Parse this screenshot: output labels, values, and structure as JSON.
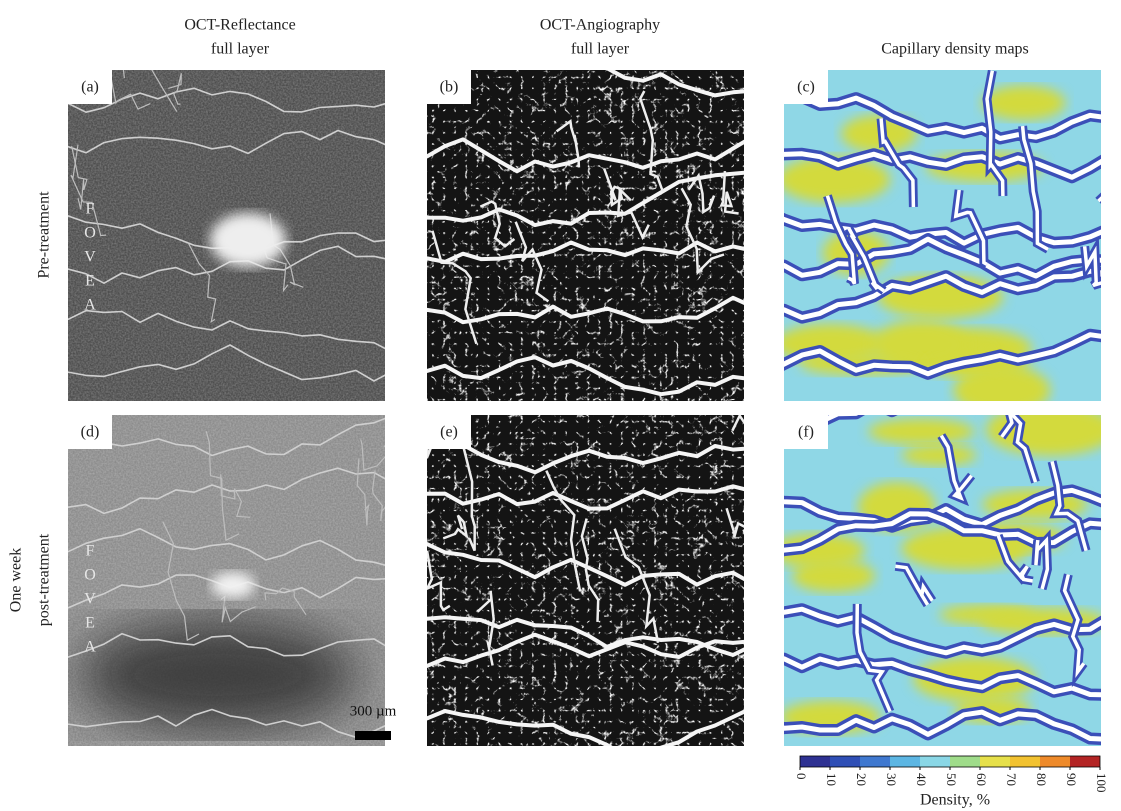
{
  "columns": [
    {
      "lines": [
        "OCT-Reflectance",
        "full layer"
      ]
    },
    {
      "lines": [
        "OCT-Angiography",
        "full layer"
      ]
    },
    {
      "lines": [
        "Capillary density maps"
      ]
    }
  ],
  "rows": [
    {
      "lines": [
        "Pre-treatment"
      ]
    },
    {
      "lines": [
        "One week",
        "post-treatment"
      ]
    }
  ],
  "panels": [
    "(a)",
    "(b)",
    "(c)",
    "(d)",
    "(e)",
    "(f)"
  ],
  "fovea": [
    "F",
    "O",
    "V",
    "E",
    "A"
  ],
  "scale_bar": "300 µm",
  "colorbar": {
    "ticks": [
      0,
      10,
      20,
      30,
      40,
      50,
      60,
      70,
      80,
      90,
      100
    ],
    "colors": [
      "#2e3192",
      "#2f4fb6",
      "#3f78cf",
      "#5cb6e3",
      "#8ad7e6",
      "#9fdc8a",
      "#e6e04a",
      "#f2c230",
      "#ee8a2a",
      "#b32424"
    ],
    "label": "Density, %"
  }
}
